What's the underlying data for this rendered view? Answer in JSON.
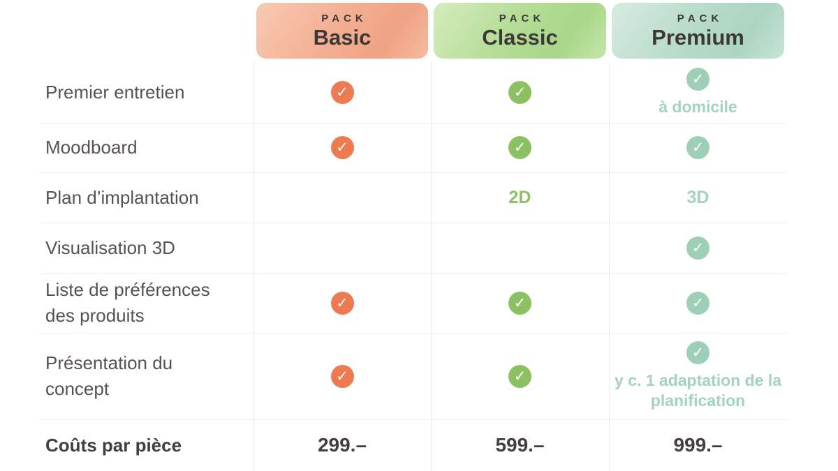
{
  "columns": [
    {
      "kicker": "PACK",
      "name": "Basic"
    },
    {
      "kicker": "PACK",
      "name": "Classic"
    },
    {
      "kicker": "PACK",
      "name": "Premium"
    }
  ],
  "rows": [
    {
      "label": "Premier entretien",
      "premium_note": "à domicile"
    },
    {
      "label": "Moodboard"
    },
    {
      "label": "Plan d’implantation",
      "classic_text": "2D",
      "premium_text": "3D"
    },
    {
      "label": "Visualisation 3D"
    },
    {
      "label": "Liste de préférences des produits"
    },
    {
      "label": "Présentation du concept",
      "premium_note": "y c. 1 adaptation de la planification"
    },
    {
      "label": "Coûts par pièce",
      "basic_price": "299.–",
      "classic_price": "599.–",
      "premium_price": "999.–"
    }
  ],
  "icons": {
    "check": "✓"
  },
  "colors": {
    "basic_accent": "#ee7a51",
    "classic_accent": "#8cc163",
    "premium_accent": "#9ccfb6",
    "note_text": "#a2d3bf",
    "grid_line": "#ececec",
    "label_text": "#57524f",
    "heading_text": "#3d3837"
  }
}
